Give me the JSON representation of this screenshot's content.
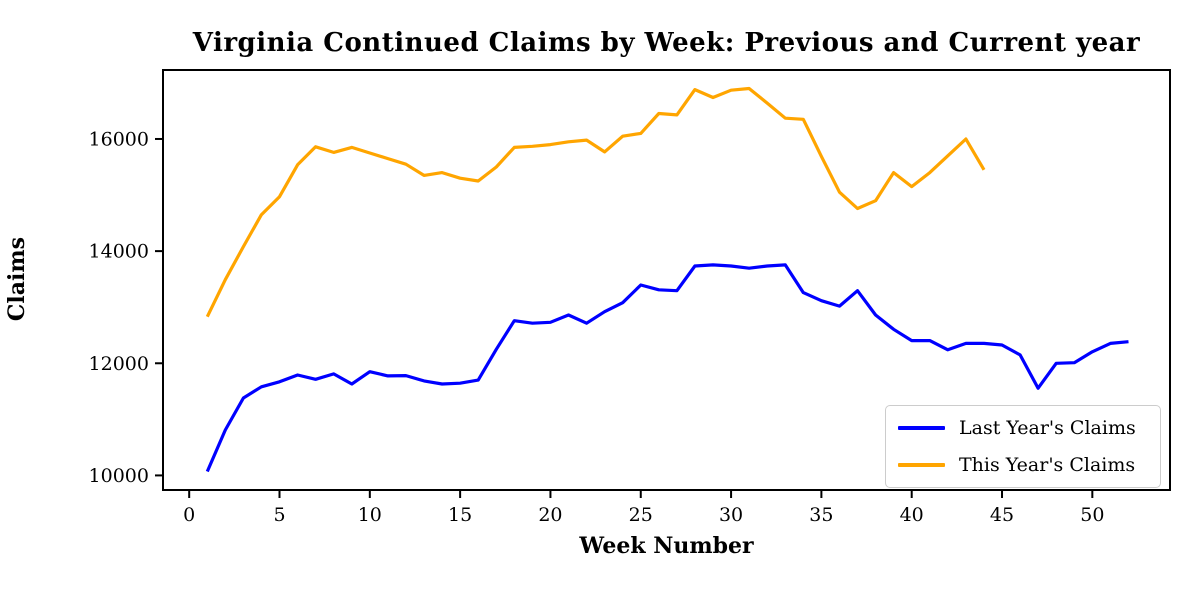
{
  "figure": {
    "background": "#ffffff",
    "text_color": "#000000",
    "spine_color": "#000000"
  },
  "chart_data": {
    "type": "line",
    "title": "Virginia Continued Claims by Week: Previous and Current year",
    "xlabel": "Week Number",
    "ylabel": "Claims",
    "xlim": [
      -1.45,
      54.3
    ],
    "ylim": [
      9740,
      17230
    ],
    "x_ticks": [
      0,
      5,
      10,
      15,
      20,
      25,
      30,
      35,
      40,
      45,
      50
    ],
    "y_ticks": [
      10000,
      12000,
      14000,
      16000
    ],
    "grid": false,
    "legend_position": "lower right",
    "series": [
      {
        "name": "Last Year's Claims",
        "color": "#0000ff",
        "x": [
          1,
          2,
          3,
          4,
          5,
          6,
          7,
          8,
          9,
          10,
          11,
          12,
          13,
          14,
          15,
          16,
          17,
          18,
          19,
          20,
          21,
          22,
          23,
          24,
          25,
          26,
          27,
          28,
          29,
          30,
          31,
          32,
          33,
          34,
          35,
          36,
          37,
          38,
          39,
          40,
          41,
          42,
          43,
          44,
          45,
          46,
          47,
          48,
          49,
          50,
          51,
          52
        ],
        "values": [
          10070,
          10810,
          11380,
          11580,
          11670,
          11790,
          11715,
          11810,
          11630,
          11850,
          11775,
          11780,
          11685,
          11630,
          11645,
          11700,
          12250,
          12760,
          12715,
          12730,
          12860,
          12715,
          12920,
          13080,
          13395,
          13310,
          13295,
          13735,
          13755,
          13735,
          13695,
          13735,
          13755,
          13260,
          13115,
          13020,
          13295,
          12860,
          12605,
          12405,
          12405,
          12240,
          12355,
          12355,
          12325,
          12150,
          11555,
          12000,
          12010,
          12205,
          12355,
          12385
        ]
      },
      {
        "name": "This Year's Claims",
        "color": "#ffa500",
        "x": [
          1,
          2,
          3,
          4,
          5,
          6,
          7,
          8,
          9,
          10,
          11,
          12,
          13,
          14,
          15,
          16,
          17,
          18,
          19,
          20,
          21,
          22,
          23,
          24,
          25,
          26,
          27,
          28,
          29,
          30,
          31,
          32,
          33,
          34,
          35,
          36,
          37,
          38,
          39,
          40,
          41,
          42,
          43,
          44
        ],
        "values": [
          12830,
          13490,
          14080,
          14650,
          14970,
          15540,
          15860,
          15760,
          15850,
          15750,
          15650,
          15550,
          15350,
          15400,
          15300,
          15250,
          15500,
          15850,
          15870,
          15900,
          15950,
          15980,
          15770,
          16050,
          16100,
          16455,
          16430,
          16880,
          16740,
          16870,
          16900,
          16640,
          16370,
          16350,
          15690,
          15050,
          14760,
          14900,
          15400,
          15150,
          15400,
          15700,
          16000,
          15450
        ]
      }
    ]
  }
}
